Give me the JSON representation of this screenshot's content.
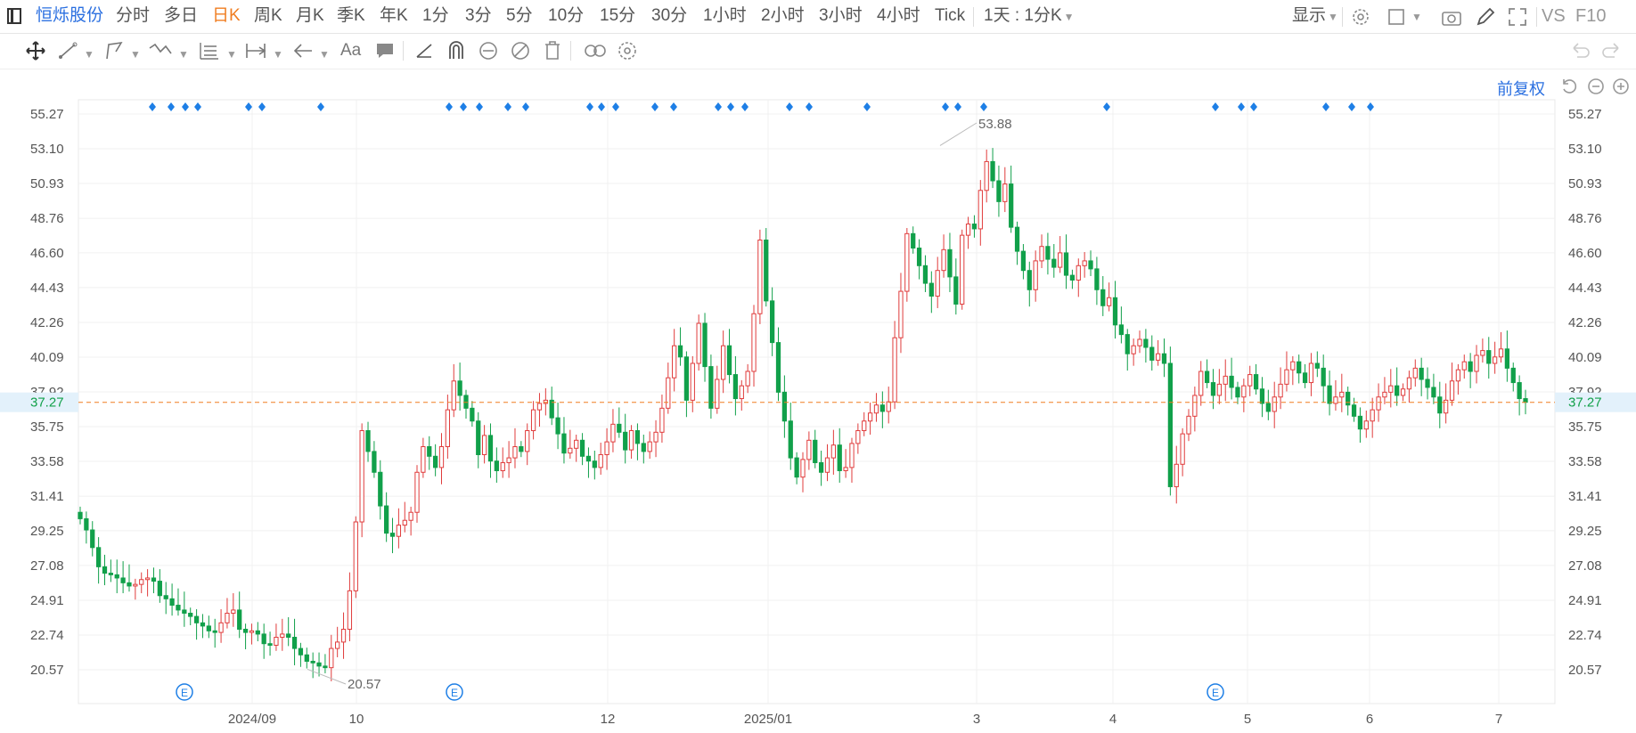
{
  "top_bar": {
    "stock_name": "恒烁股份",
    "periods": [
      "分时",
      "多日",
      "日K",
      "周K",
      "月K",
      "季K",
      "年K",
      "1分",
      "3分",
      "5分",
      "10分",
      "15分",
      "30分",
      "1小时",
      "2小时",
      "3小时",
      "4小时",
      "Tick"
    ],
    "active_period": "日K",
    "interval": "1天 : 1分K",
    "display_label": "显示",
    "right_text": [
      "VS",
      "F10"
    ]
  },
  "toolbar": {
    "icons": [
      "move-icon",
      "line-tool-icon",
      "polyline-tool-icon",
      "wave-tool-icon",
      "fib-tool-icon",
      "measure-tool-icon",
      "arrow-tool-icon",
      "text-tool-icon",
      "comment-tool-icon",
      "angle-tool-icon",
      "magnet-icon",
      "lock-icon",
      "hide-icon",
      "delete-icon",
      "link-icon",
      "settings-icon",
      "undo-icon",
      "redo-icon"
    ],
    "text_label": "Aa"
  },
  "chart_controls": {
    "adjust_label": "前复权",
    "icons": [
      "reset-icon",
      "zoom-out-icon",
      "zoom-in-icon"
    ]
  },
  "colors": {
    "up": "#e03c3c",
    "down": "#11a04a",
    "accent": "#2a6fe0",
    "price_line": "#f07d20",
    "marker": "#1e7fe6"
  },
  "chart_data": {
    "type": "candlestick",
    "y_ticks": [
      "55.27",
      "53.10",
      "50.93",
      "48.76",
      "46.60",
      "44.43",
      "42.26",
      "40.09",
      "37.92",
      "35.75",
      "33.58",
      "31.41",
      "29.25",
      "27.08",
      "24.91",
      "22.74",
      "20.57"
    ],
    "x_labels": [
      "2024/09",
      "10",
      "12",
      "2025/01",
      "3",
      "4",
      "5",
      "6",
      "7"
    ],
    "current_price": "37.27",
    "annotations": {
      "high": "53.88",
      "low": "20.57"
    },
    "event_marker_label": "E",
    "closes": [
      30.0,
      29.3,
      28.2,
      27.0,
      26.6,
      26.5,
      26.3,
      26.0,
      25.8,
      25.9,
      26.2,
      26.3,
      26.1,
      25.2,
      25.0,
      24.6,
      24.3,
      24.1,
      23.9,
      23.5,
      23.3,
      23.0,
      22.9,
      23.5,
      24.1,
      24.3,
      23.1,
      22.9,
      23.0,
      22.8,
      22.2,
      22.1,
      22.6,
      22.8,
      22.6,
      21.9,
      21.5,
      21.1,
      21.0,
      20.8,
      20.7,
      21.9,
      22.3,
      23.1,
      25.5,
      29.8,
      35.5,
      34.2,
      32.9,
      30.8,
      29.1,
      28.9,
      29.6,
      29.9,
      30.4,
      32.9,
      34.5,
      33.9,
      33.2,
      34.5,
      36.8,
      38.6,
      37.7,
      36.9,
      36.1,
      34.0,
      35.2,
      33.6,
      33.0,
      33.5,
      33.8,
      34.5,
      34.2,
      35.5,
      36.8,
      37.2,
      37.4,
      36.3,
      35.3,
      34.1,
      34.4,
      34.9,
      33.9,
      33.6,
      33.2,
      34.0,
      34.8,
      35.9,
      35.4,
      34.3,
      35.5,
      34.7,
      34.2,
      34.8,
      35.4,
      36.9,
      38.8,
      40.8,
      40.1,
      37.4,
      39.7,
      42.2,
      39.5,
      36.9,
      38.7,
      40.8,
      39.0,
      37.5,
      38.3,
      39.2,
      42.8,
      47.4,
      43.6,
      41.0,
      37.9,
      36.1,
      33.8,
      32.6,
      33.7,
      34.9,
      33.5,
      32.9,
      33.8,
      34.6,
      33.0,
      33.2,
      34.7,
      35.5,
      36.1,
      36.6,
      37.1,
      36.7,
      37.3,
      41.3,
      44.2,
      47.8,
      46.9,
      45.8,
      44.7,
      43.9,
      45.5,
      46.8,
      45.1,
      43.4,
      47.7,
      48.4,
      48.1,
      50.5,
      52.3,
      51.1,
      49.8,
      50.9,
      48.2,
      46.7,
      45.5,
      44.3,
      46.1,
      47.0,
      46.2,
      45.7,
      46.6,
      45.2,
      44.9,
      45.8,
      46.1,
      45.6,
      44.3,
      43.3,
      43.8,
      42.1,
      41.5,
      40.3,
      40.8,
      41.2,
      40.7,
      39.9,
      40.3,
      39.7,
      32.0,
      33.4,
      35.3,
      36.4,
      37.7,
      39.2,
      38.5,
      37.7,
      38.4,
      38.9,
      38.2,
      37.6,
      38.3,
      39.0,
      38.1,
      37.2,
      36.7,
      37.6,
      38.4,
      39.3,
      39.8,
      39.1,
      38.5,
      39.7,
      39.4,
      38.3,
      37.2,
      37.6,
      37.9,
      37.1,
      36.4,
      35.6,
      36.1,
      36.8,
      37.6,
      37.9,
      38.3,
      37.7,
      38.1,
      38.8,
      39.4,
      38.7,
      38.2,
      37.6,
      36.6,
      37.4,
      38.6,
      39.3,
      39.8,
      39.2,
      40.2,
      40.5,
      39.7,
      40.1,
      40.6,
      39.4,
      38.5,
      37.5,
      37.27
    ]
  }
}
